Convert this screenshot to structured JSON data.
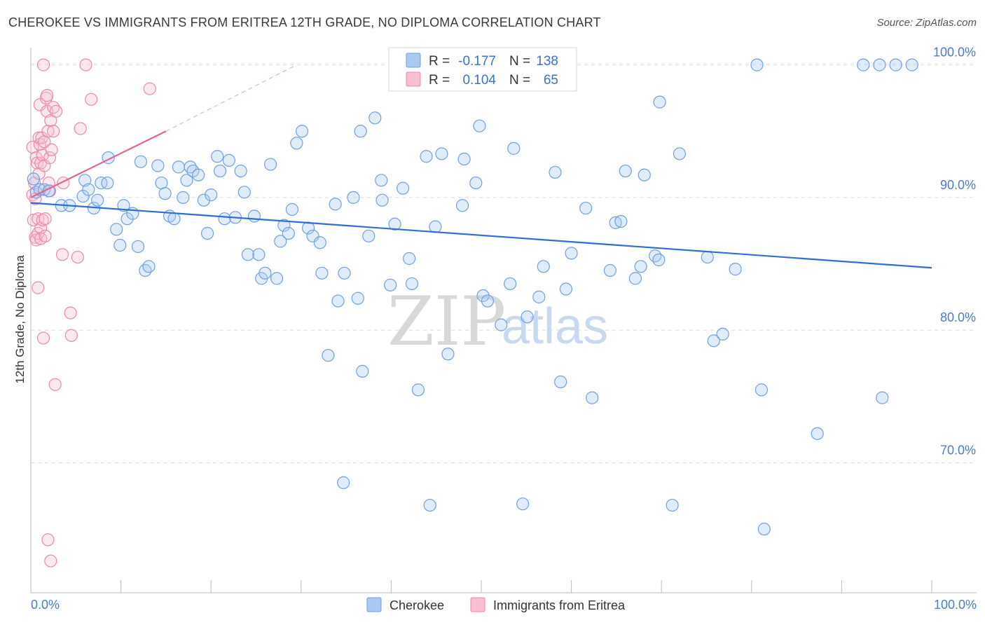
{
  "title": "CHEROKEE VS IMMIGRANTS FROM ERITREA 12TH GRADE, NO DIPLOMA CORRELATION CHART",
  "source": "Source: ZipAtlas.com",
  "watermark": {
    "zip": "ZIP",
    "atlas": "atlas"
  },
  "colors": {
    "blue": "#6fa0e0",
    "blue_fill": "#aac8f0",
    "blue_line": "#2f6fcf",
    "pink": "#ec8aaa",
    "pink_fill": "#f7bfd1",
    "pink_line": "#e0668f",
    "axis_label": "#4a7cc9"
  },
  "legend": {
    "rows": [
      {
        "r_label": "R =",
        "r_value": "-0.177",
        "n_label": "N =",
        "n_value": "138",
        "color": "blue"
      },
      {
        "r_label": "R =",
        "r_value": "0.104",
        "n_label": "N =",
        "n_value": "65",
        "color": "pink"
      }
    ]
  },
  "bottom_legend": [
    "Cherokee",
    "Immigrants from Eritrea"
  ],
  "chart_data": {
    "type": "scatter",
    "title": "CHEROKEE VS IMMIGRANTS FROM ERITREA 12TH GRADE, NO DIPLOMA CORRELATION CHART",
    "xlabel": "",
    "ylabel": "12th Grade, No Diploma",
    "xlim": [
      0,
      100
    ],
    "ylim": [
      60.2,
      101.3
    ],
    "x_tick_labels": [
      "0.0%",
      "100.0%"
    ],
    "y_ticks": [
      70,
      80,
      90,
      100
    ],
    "y_tick_labels": [
      "70.0%",
      "80.0%",
      "90.0%",
      "100.0%"
    ],
    "grid": true,
    "legend_position": "top-center",
    "series": [
      {
        "name": "Cherokee",
        "trend": {
          "x": [
            0,
            100
          ],
          "y": [
            89.6,
            84.7
          ]
        },
        "points": [
          [
            0.3,
            91.4
          ],
          [
            0.6,
            90.4
          ],
          [
            1.0,
            90.6
          ],
          [
            1.5,
            90.6
          ],
          [
            2.0,
            90.5
          ],
          [
            3.4,
            89.4
          ],
          [
            4.3,
            89.4
          ],
          [
            5.8,
            90.1
          ],
          [
            6.0,
            91.3
          ],
          [
            6.4,
            90.6
          ],
          [
            7.0,
            89.2
          ],
          [
            7.4,
            89.8
          ],
          [
            7.8,
            91.1
          ],
          [
            8.5,
            91.1
          ],
          [
            8.6,
            93.0
          ],
          [
            9.5,
            87.6
          ],
          [
            9.9,
            86.4
          ],
          [
            10.3,
            89.4
          ],
          [
            10.7,
            88.4
          ],
          [
            11.3,
            88.8
          ],
          [
            11.9,
            86.3
          ],
          [
            12.2,
            92.7
          ],
          [
            12.7,
            84.5
          ],
          [
            13.1,
            84.8
          ],
          [
            14.1,
            92.4
          ],
          [
            14.5,
            91.1
          ],
          [
            14.9,
            90.3
          ],
          [
            15.4,
            88.6
          ],
          [
            15.9,
            88.4
          ],
          [
            16.4,
            92.3
          ],
          [
            16.9,
            90.0
          ],
          [
            17.3,
            91.3
          ],
          [
            17.7,
            92.3
          ],
          [
            18.0,
            92.0
          ],
          [
            18.6,
            91.7
          ],
          [
            19.2,
            89.8
          ],
          [
            19.6,
            87.3
          ],
          [
            20.0,
            90.2
          ],
          [
            20.7,
            93.1
          ],
          [
            21.0,
            92.0
          ],
          [
            21.5,
            88.4
          ],
          [
            22.0,
            92.8
          ],
          [
            22.7,
            88.5
          ],
          [
            23.3,
            92.0
          ],
          [
            23.7,
            90.4
          ],
          [
            24.1,
            85.7
          ],
          [
            24.8,
            88.6
          ],
          [
            25.3,
            85.7
          ],
          [
            25.6,
            83.9
          ],
          [
            26.0,
            84.3
          ],
          [
            26.6,
            92.5
          ],
          [
            27.3,
            83.9
          ],
          [
            27.7,
            86.7
          ],
          [
            28.1,
            87.9
          ],
          [
            28.6,
            87.3
          ],
          [
            29.0,
            89.1
          ],
          [
            29.5,
            94.1
          ],
          [
            30.1,
            95.0
          ],
          [
            30.8,
            87.7
          ],
          [
            31.3,
            87.1
          ],
          [
            32.1,
            86.6
          ],
          [
            32.3,
            84.3
          ],
          [
            33.0,
            78.1
          ],
          [
            33.8,
            89.5
          ],
          [
            34.1,
            82.2
          ],
          [
            34.7,
            68.5
          ],
          [
            34.8,
            84.3
          ],
          [
            35.8,
            90.0
          ],
          [
            36.3,
            82.4
          ],
          [
            36.6,
            95.0
          ],
          [
            36.8,
            76.9
          ],
          [
            37.5,
            87.1
          ],
          [
            38.2,
            96.0
          ],
          [
            38.9,
            91.3
          ],
          [
            39.0,
            89.8
          ],
          [
            39.9,
            83.4
          ],
          [
            40.4,
            88.0
          ],
          [
            41.3,
            90.7
          ],
          [
            42.0,
            85.4
          ],
          [
            42.3,
            83.5
          ],
          [
            43.0,
            75.5
          ],
          [
            43.9,
            93.1
          ],
          [
            44.3,
            66.8
          ],
          [
            44.9,
            87.8
          ],
          [
            45.6,
            93.3
          ],
          [
            46.3,
            78.2
          ],
          [
            47.3,
            100.0
          ],
          [
            47.9,
            89.4
          ],
          [
            48.1,
            92.9
          ],
          [
            49.4,
            91.1
          ],
          [
            49.8,
            95.4
          ],
          [
            50.2,
            82.6
          ],
          [
            50.7,
            82.2
          ],
          [
            51.5,
            98.9
          ],
          [
            52.2,
            80.4
          ],
          [
            52.7,
            100.0
          ],
          [
            53.2,
            83.5
          ],
          [
            53.6,
            93.7
          ],
          [
            54.1,
            100.0
          ],
          [
            54.6,
            66.9
          ],
          [
            55.1,
            81.0
          ],
          [
            56.4,
            82.5
          ],
          [
            56.9,
            84.8
          ],
          [
            58.2,
            91.9
          ],
          [
            58.8,
            76.1
          ],
          [
            59.4,
            83.1
          ],
          [
            60.0,
            85.8
          ],
          [
            61.6,
            89.2
          ],
          [
            62.3,
            74.9
          ],
          [
            64.3,
            84.5
          ],
          [
            64.9,
            88.1
          ],
          [
            65.5,
            88.2
          ],
          [
            66.0,
            92.0
          ],
          [
            67.1,
            83.9
          ],
          [
            67.7,
            84.8
          ],
          [
            68.1,
            91.7
          ],
          [
            69.3,
            85.6
          ],
          [
            69.7,
            85.3
          ],
          [
            69.8,
            97.2
          ],
          [
            71.2,
            66.8
          ],
          [
            72.0,
            93.3
          ],
          [
            75.1,
            85.5
          ],
          [
            75.8,
            79.2
          ],
          [
            76.8,
            79.7
          ],
          [
            78.2,
            84.6
          ],
          [
            80.6,
            100.0
          ],
          [
            81.1,
            75.5
          ],
          [
            81.4,
            65.0
          ],
          [
            87.3,
            72.2
          ],
          [
            92.4,
            100.0
          ],
          [
            94.2,
            100.0
          ],
          [
            94.5,
            74.9
          ],
          [
            96.0,
            100.0
          ],
          [
            97.8,
            100.0
          ]
        ]
      },
      {
        "name": "Immigrants from Eritrea",
        "trend": {
          "x": [
            0,
            15
          ],
          "y": [
            90.0,
            95.0
          ]
        },
        "trend_extended": {
          "x": [
            15,
            29.5
          ],
          "y": [
            95.0,
            100.0
          ]
        },
        "points": [
          [
            0.2,
            93.8
          ],
          [
            0.2,
            90.2
          ],
          [
            0.3,
            88.3
          ],
          [
            0.4,
            91.1
          ],
          [
            0.5,
            89.9
          ],
          [
            0.5,
            87.0
          ],
          [
            0.6,
            86.8
          ],
          [
            0.6,
            93.0
          ],
          [
            0.7,
            92.6
          ],
          [
            0.8,
            88.4
          ],
          [
            0.8,
            87.3
          ],
          [
            0.8,
            83.2
          ],
          [
            0.9,
            94.5
          ],
          [
            0.9,
            91.8
          ],
          [
            1.0,
            97.0
          ],
          [
            1.0,
            94.0
          ],
          [
            1.1,
            92.6
          ],
          [
            1.1,
            87.7
          ],
          [
            1.1,
            86.9
          ],
          [
            1.2,
            94.5
          ],
          [
            1.3,
            93.2
          ],
          [
            1.3,
            88.3
          ],
          [
            1.4,
            100.0
          ],
          [
            1.4,
            79.4
          ],
          [
            1.5,
            94.2
          ],
          [
            1.5,
            92.4
          ],
          [
            1.6,
            88.4
          ],
          [
            1.6,
            87.1
          ],
          [
            1.7,
            97.5
          ],
          [
            1.8,
            97.7
          ],
          [
            1.8,
            96.5
          ],
          [
            1.9,
            64.2
          ],
          [
            1.9,
            95.0
          ],
          [
            2.0,
            91.1
          ],
          [
            2.1,
            93.0
          ],
          [
            2.1,
            90.5
          ],
          [
            2.2,
            62.6
          ],
          [
            2.2,
            95.8
          ],
          [
            2.3,
            93.6
          ],
          [
            2.5,
            95.0
          ],
          [
            2.5,
            96.8
          ],
          [
            2.7,
            75.9
          ],
          [
            2.8,
            96.5
          ],
          [
            3.5,
            85.7
          ],
          [
            3.6,
            91.1
          ],
          [
            4.4,
            81.3
          ],
          [
            4.5,
            79.6
          ],
          [
            5.2,
            85.5
          ],
          [
            5.5,
            95.2
          ],
          [
            6.1,
            100.0
          ],
          [
            6.7,
            97.4
          ],
          [
            13.2,
            98.2
          ]
        ]
      }
    ]
  }
}
